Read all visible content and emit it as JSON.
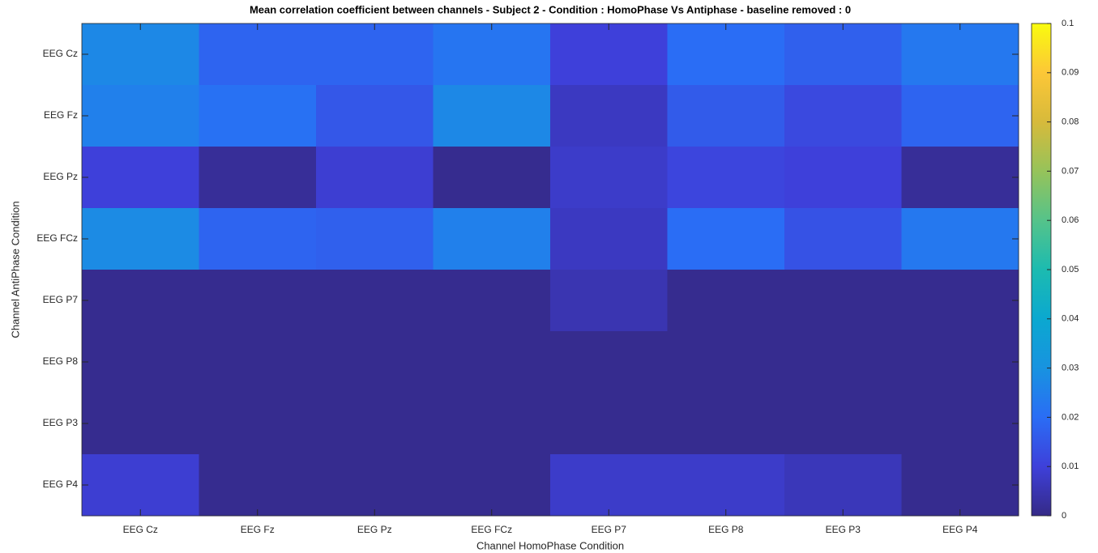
{
  "chart_data": {
    "type": "heatmap",
    "title": "Mean correlation coefficient between channels - Subject 2 - Condition : HomoPhase Vs Antiphase - baseline removed : 0",
    "x_label": "Channel HomoPhase Condition",
    "y_label": "Channel AntiPhase Condition",
    "x_categories": [
      "EEG Cz",
      "EEG Fz",
      "EEG Pz",
      "EEG FCz",
      "EEG P7",
      "EEG P8",
      "EEG P3",
      "EEG P4"
    ],
    "y_categories": [
      "EEG Cz",
      "EEG Fz",
      "EEG Pz",
      "EEG FCz",
      "EEG P7",
      "EEG P8",
      "EEG P3",
      "EEG P4"
    ],
    "values": [
      [
        0.027,
        0.018,
        0.018,
        0.022,
        0.01,
        0.02,
        0.017,
        0.023
      ],
      [
        0.025,
        0.021,
        0.015,
        0.027,
        0.007,
        0.016,
        0.012,
        0.018
      ],
      [
        0.01,
        0.002,
        0.009,
        0.001,
        0.008,
        0.011,
        0.01,
        0.002
      ],
      [
        0.028,
        0.018,
        0.017,
        0.025,
        0.007,
        0.02,
        0.014,
        0.023
      ],
      [
        0.001,
        0.001,
        0.001,
        0.001,
        0.005,
        0.001,
        0.001,
        0.001
      ],
      [
        0.001,
        0.001,
        0.001,
        0.001,
        0.001,
        0.001,
        0.001,
        0.001
      ],
      [
        0.001,
        0.001,
        0.001,
        0.001,
        0.001,
        0.001,
        0.001,
        0.001
      ],
      [
        0.009,
        0.001,
        0.001,
        0.001,
        0.008,
        0.008,
        0.006,
        0.001
      ]
    ],
    "clim": [
      0,
      0.1
    ],
    "cticks": [
      0,
      0.01,
      0.02,
      0.03,
      0.04,
      0.05,
      0.06,
      0.07,
      0.08,
      0.09,
      0.1
    ],
    "colormap": [
      "#352a87",
      "#3e40da",
      "#2a6df5",
      "#1893e0",
      "#0ba8d0",
      "#1cbbb0",
      "#55c38a",
      "#96c35a",
      "#d7ba3b",
      "#fcc737",
      "#f9fb0e"
    ]
  }
}
